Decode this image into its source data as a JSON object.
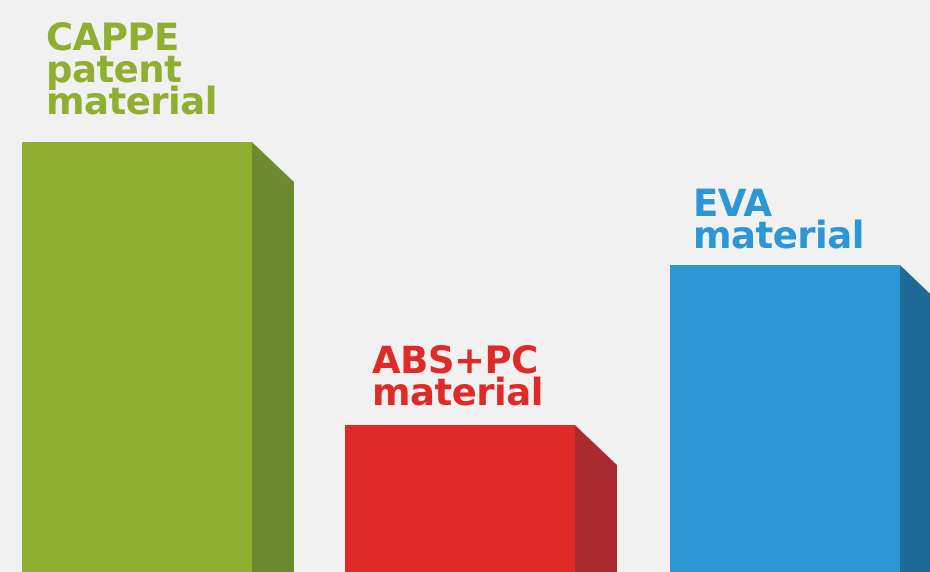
{
  "chart_data": {
    "type": "bar",
    "style": "3d-columns",
    "y_axis_visible": false,
    "grid": false,
    "legend": "none",
    "categories": [
      {
        "line1": "CAPPE",
        "line2": "patent",
        "line3": "material"
      },
      {
        "line1": "ABS+PC",
        "line2": "material"
      },
      {
        "line1": "EVA",
        "line2": "material"
      }
    ],
    "values": [
      430,
      147,
      307
    ],
    "ylim": [
      0,
      430
    ],
    "colors": {
      "front": [
        "#8faf30",
        "#e02a27",
        "#2c97d4"
      ],
      "side": [
        "#6e8a2e",
        "#a92b2f",
        "#1d6a97"
      ],
      "label": [
        "#8faf30",
        "#e02a27",
        "#2c97d4"
      ]
    }
  }
}
